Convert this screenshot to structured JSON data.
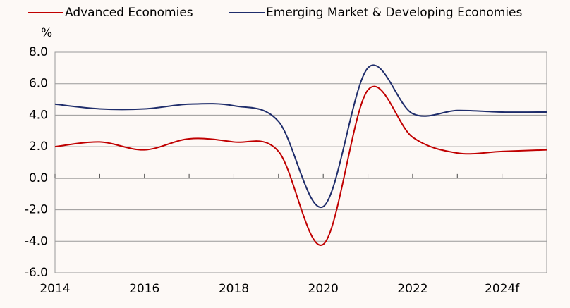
{
  "chart_data": {
    "type": "line",
    "y_label": "%",
    "categories": [
      "2014",
      null,
      "2016",
      null,
      "2018",
      null,
      "2020",
      null,
      "2022",
      null,
      "2024f",
      null
    ],
    "series": [
      {
        "name": "Advanced Economies",
        "color": "#c00000",
        "values": [
          2.0,
          2.3,
          1.8,
          2.5,
          2.3,
          1.7,
          -4.2,
          5.6,
          2.6,
          1.6,
          1.7,
          1.8
        ]
      },
      {
        "name": "Emerging Market & Developing Economies",
        "color": "#1f2d6b",
        "values": [
          4.7,
          4.4,
          4.4,
          4.7,
          4.6,
          3.6,
          -1.8,
          7.0,
          4.1,
          4.3,
          4.2,
          4.2
        ]
      }
    ],
    "ylim": [
      -6,
      8
    ],
    "yticks": [
      {
        "value": -6,
        "label": "-6.0"
      },
      {
        "value": -4,
        "label": "-4.0"
      },
      {
        "value": -2,
        "label": "-2.0"
      },
      {
        "value": 0,
        "label": "0.0"
      },
      {
        "value": 2,
        "label": "2.0"
      },
      {
        "value": 4,
        "label": "4.0"
      },
      {
        "value": 6,
        "label": "6.0"
      },
      {
        "value": 8,
        "label": "8.0"
      }
    ],
    "grid": true,
    "legend": "top"
  }
}
